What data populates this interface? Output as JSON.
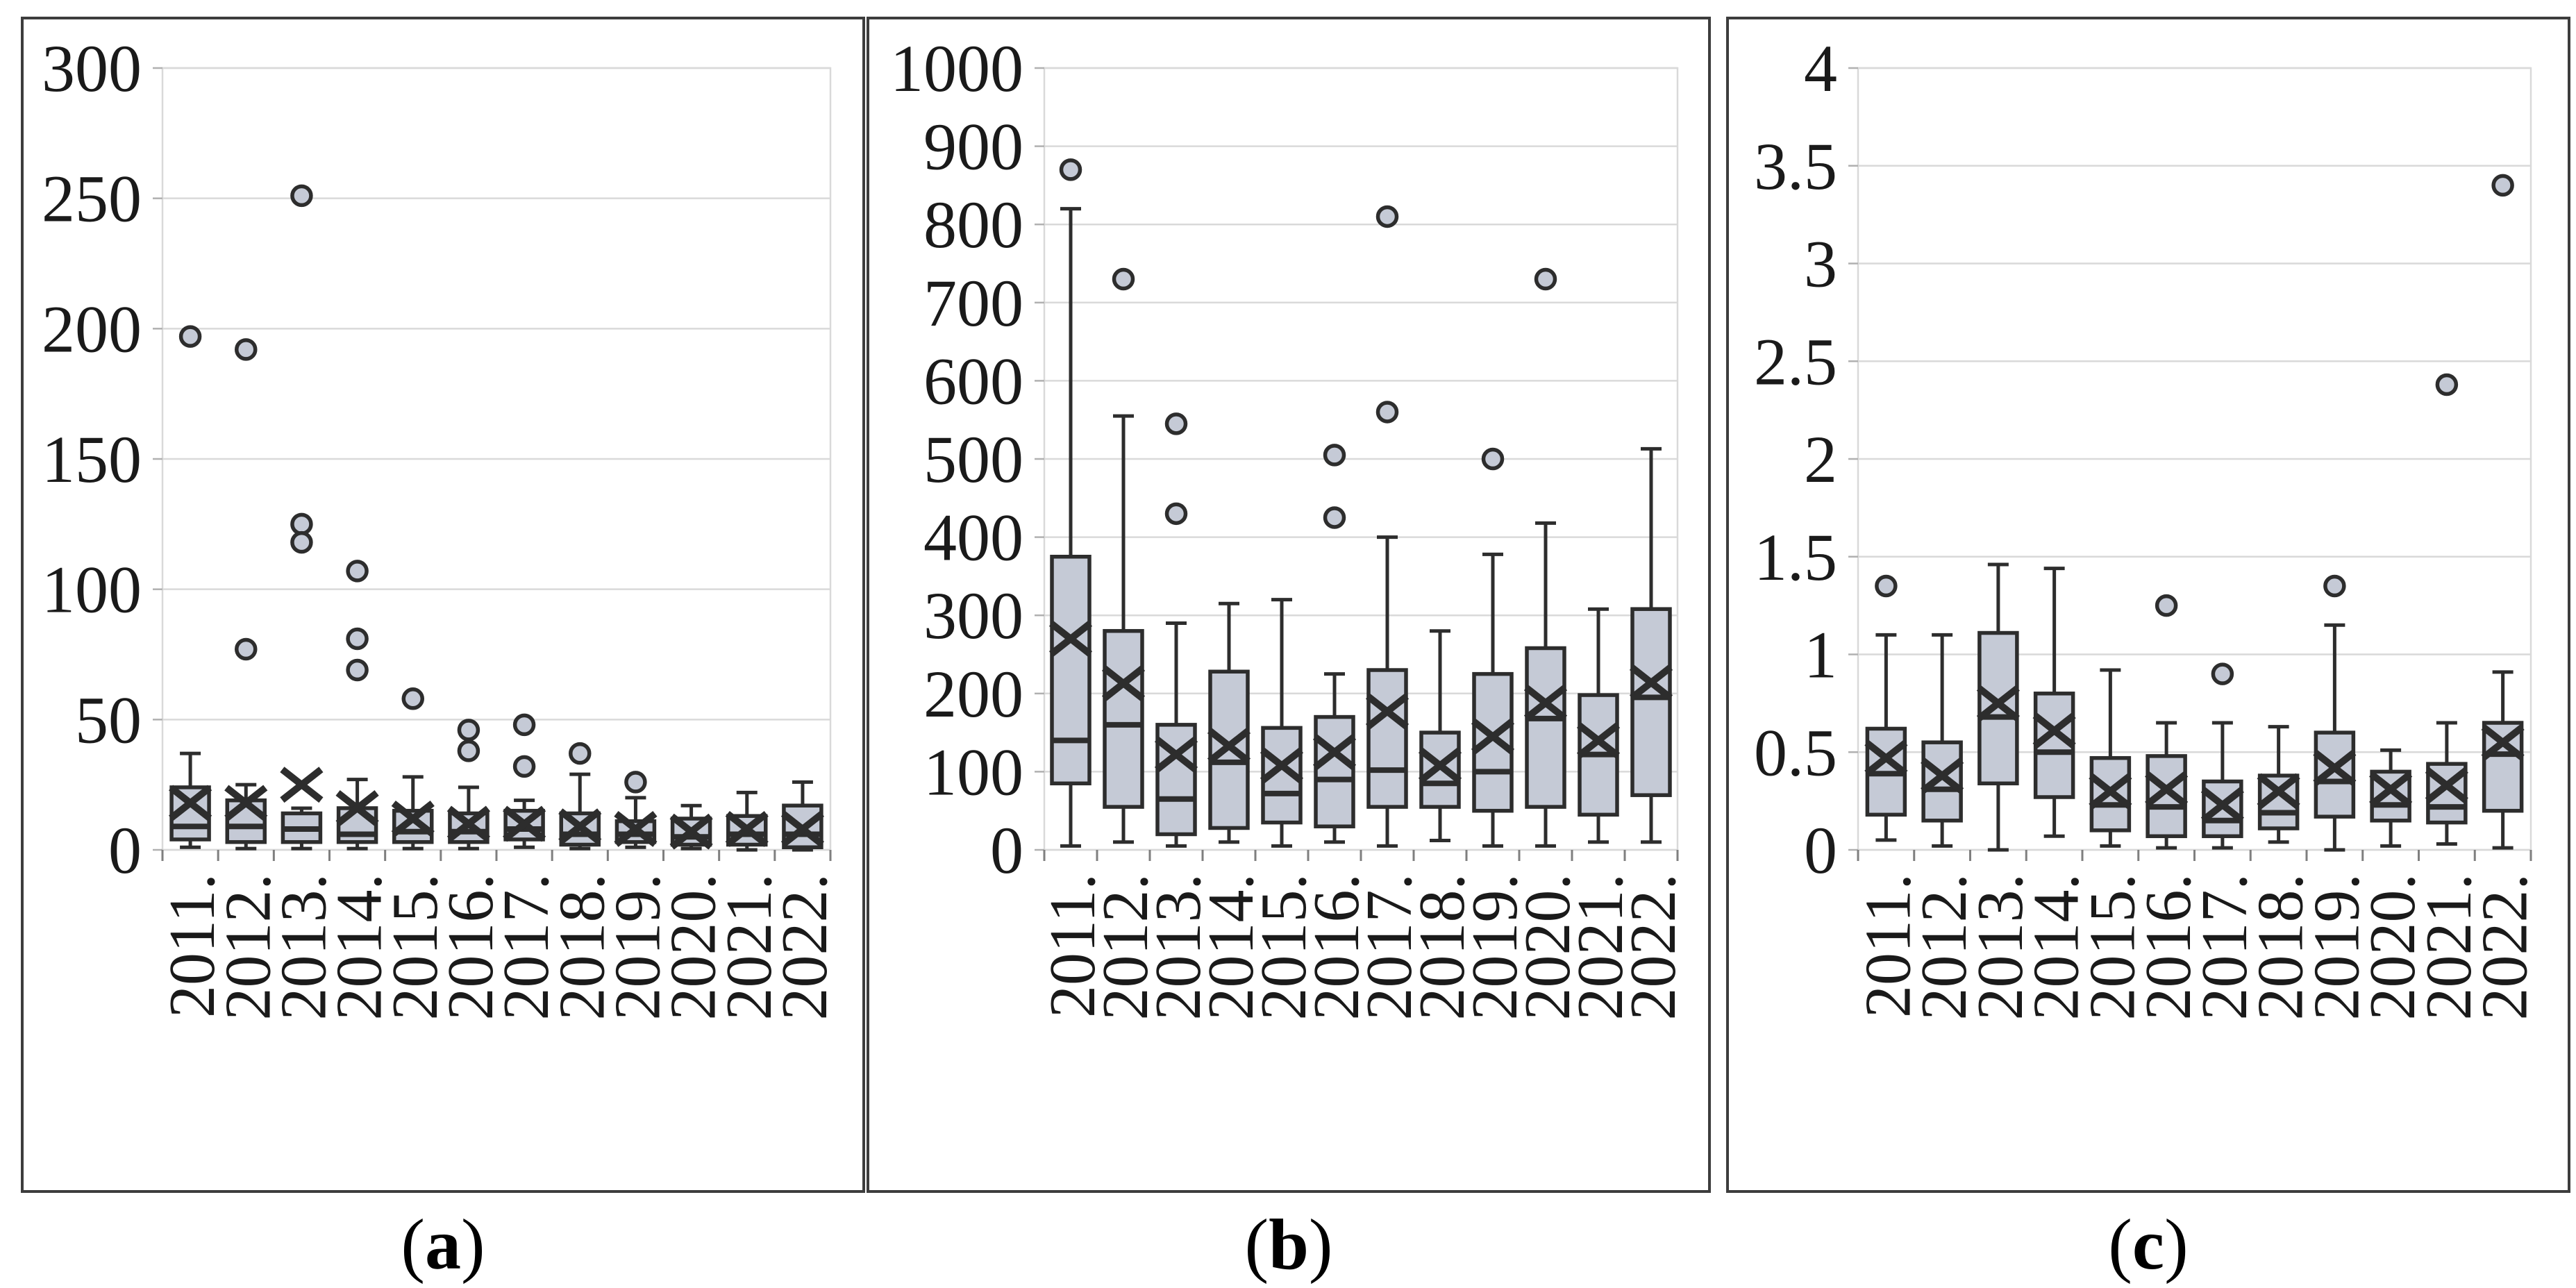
{
  "figure": {
    "background": "#ffffff",
    "box_fill": "#c5cad6",
    "box_stroke": "#2d2d2d",
    "gridline_color": "#d9d9d9",
    "panel_border_color": "#3d3d3d",
    "tick_label_color": "#1a1a1a"
  },
  "chart_data": [
    {
      "type": "boxplot",
      "panel": "a",
      "caption_open": "(",
      "caption_letter": "a",
      "caption_close": ")",
      "title": "",
      "xlabel": "",
      "ylabel": "",
      "ylim": [
        0,
        300
      ],
      "yticks": [
        0,
        50,
        100,
        150,
        200,
        250,
        300
      ],
      "ytick_labels": [
        "0",
        "50",
        "100",
        "150",
        "200",
        "250",
        "300"
      ],
      "grid": true,
      "categories": [
        "2011.",
        "2012.",
        "2013.",
        "2014.",
        "2015.",
        "2016.",
        "2017.",
        "2018.",
        "2019.",
        "2020.",
        "2021.",
        "2022."
      ],
      "series": [
        {
          "category": "2011.",
          "low": 1,
          "q1": 4,
          "median": 9,
          "q3": 24,
          "high": 37,
          "mean": 18,
          "outliers": [
            197
          ]
        },
        {
          "category": "2012.",
          "low": 0.5,
          "q1": 3,
          "median": 9,
          "q3": 19,
          "high": 25,
          "mean": 18,
          "outliers": [
            192,
            77
          ]
        },
        {
          "category": "2013.",
          "low": 0.5,
          "q1": 3,
          "median": 8,
          "q3": 14,
          "high": 16,
          "mean": 25,
          "outliers": [
            251,
            125,
            118
          ]
        },
        {
          "category": "2014.",
          "low": 0.5,
          "q1": 3,
          "median": 6,
          "q3": 16,
          "high": 27,
          "mean": 16,
          "outliers": [
            107,
            81,
            69
          ]
        },
        {
          "category": "2015.",
          "low": 0.5,
          "q1": 3,
          "median": 7,
          "q3": 15,
          "high": 28,
          "mean": 12,
          "outliers": [
            58
          ]
        },
        {
          "category": "2016.",
          "low": 0.5,
          "q1": 3,
          "median": 7,
          "q3": 14,
          "high": 24,
          "mean": 10,
          "outliers": [
            46,
            38
          ]
        },
        {
          "category": "2017.",
          "low": 1,
          "q1": 4,
          "median": 8,
          "q3": 15,
          "high": 19,
          "mean": 10,
          "outliers": [
            48,
            32
          ]
        },
        {
          "category": "2018.",
          "low": 0.5,
          "q1": 2,
          "median": 6,
          "q3": 14,
          "high": 29,
          "mean": 9,
          "outliers": [
            37
          ]
        },
        {
          "category": "2019.",
          "low": 1,
          "q1": 3,
          "median": 6,
          "q3": 11,
          "high": 20,
          "mean": 8,
          "outliers": [
            26
          ]
        },
        {
          "category": "2020.",
          "low": 0.5,
          "q1": 2,
          "median": 5,
          "q3": 12,
          "high": 17,
          "mean": 7,
          "outliers": []
        },
        {
          "category": "2021.",
          "low": 0,
          "q1": 2,
          "median": 6,
          "q3": 13,
          "high": 22,
          "mean": 8,
          "outliers": []
        },
        {
          "category": "2022.",
          "low": 0,
          "q1": 1,
          "median": 6,
          "q3": 17,
          "high": 26,
          "mean": 8,
          "outliers": []
        }
      ]
    },
    {
      "type": "boxplot",
      "panel": "b",
      "caption_open": "(",
      "caption_letter": "b",
      "caption_close": ")",
      "title": "",
      "xlabel": "",
      "ylabel": "",
      "ylim": [
        0,
        1000
      ],
      "yticks": [
        0,
        100,
        200,
        300,
        400,
        500,
        600,
        700,
        800,
        900,
        1000
      ],
      "ytick_labels": [
        "0",
        "100",
        "200",
        "300",
        "400",
        "500",
        "600",
        "700",
        "800",
        "900",
        "1000"
      ],
      "grid": true,
      "categories": [
        "2011.",
        "2012.",
        "2013.",
        "2014.",
        "2015.",
        "2016.",
        "2017.",
        "2018.",
        "2019.",
        "2020.",
        "2021.",
        "2022."
      ],
      "series": [
        {
          "category": "2011.",
          "low": 5,
          "q1": 85,
          "median": 140,
          "q3": 375,
          "high": 820,
          "mean": 270,
          "outliers": [
            870
          ]
        },
        {
          "category": "2012.",
          "low": 10,
          "q1": 55,
          "median": 160,
          "q3": 280,
          "high": 555,
          "mean": 213,
          "outliers": [
            730
          ]
        },
        {
          "category": "2013.",
          "low": 5,
          "q1": 20,
          "median": 65,
          "q3": 160,
          "high": 290,
          "mean": 122,
          "outliers": [
            545,
            430
          ]
        },
        {
          "category": "2014.",
          "low": 10,
          "q1": 28,
          "median": 112,
          "q3": 228,
          "high": 315,
          "mean": 133,
          "outliers": []
        },
        {
          "category": "2015.",
          "low": 5,
          "q1": 35,
          "median": 72,
          "q3": 156,
          "high": 320,
          "mean": 108,
          "outliers": []
        },
        {
          "category": "2016.",
          "low": 10,
          "q1": 30,
          "median": 90,
          "q3": 170,
          "high": 225,
          "mean": 125,
          "outliers": [
            505,
            425
          ]
        },
        {
          "category": "2017.",
          "low": 5,
          "q1": 55,
          "median": 102,
          "q3": 230,
          "high": 400,
          "mean": 177,
          "outliers": [
            810,
            560
          ]
        },
        {
          "category": "2018.",
          "low": 12,
          "q1": 55,
          "median": 85,
          "q3": 150,
          "high": 280,
          "mean": 108,
          "outliers": []
        },
        {
          "category": "2019.",
          "low": 5,
          "q1": 50,
          "median": 100,
          "q3": 225,
          "high": 378,
          "mean": 145,
          "outliers": [
            500
          ]
        },
        {
          "category": "2020.",
          "low": 5,
          "q1": 55,
          "median": 168,
          "q3": 258,
          "high": 418,
          "mean": 188,
          "outliers": [
            730
          ]
        },
        {
          "category": "2021.",
          "low": 10,
          "q1": 45,
          "median": 122,
          "q3": 198,
          "high": 308,
          "mean": 140,
          "outliers": []
        },
        {
          "category": "2022.",
          "low": 10,
          "q1": 70,
          "median": 195,
          "q3": 308,
          "high": 513,
          "mean": 214,
          "outliers": []
        }
      ]
    },
    {
      "type": "boxplot",
      "panel": "c",
      "caption_open": "(",
      "caption_letter": "c",
      "caption_close": ")",
      "title": "",
      "xlabel": "",
      "ylabel": "",
      "ylim": [
        0,
        4
      ],
      "yticks": [
        0,
        0.5,
        1,
        1.5,
        2,
        2.5,
        3,
        3.5,
        4
      ],
      "ytick_labels": [
        "0",
        "0.5",
        "1",
        "1.5",
        "2",
        "2.5",
        "3",
        "3.5",
        "4"
      ],
      "grid": true,
      "categories": [
        "2011.",
        "2012.",
        "2013.",
        "2014.",
        "2015.",
        "2016.",
        "2017.",
        "2018.",
        "2019.",
        "2020.",
        "2021.",
        "2022."
      ],
      "series": [
        {
          "category": "2011.",
          "low": 0.05,
          "q1": 0.18,
          "median": 0.39,
          "q3": 0.62,
          "high": 1.1,
          "mean": 0.47,
          "outliers": [
            1.35
          ]
        },
        {
          "category": "2012.",
          "low": 0.02,
          "q1": 0.15,
          "median": 0.31,
          "q3": 0.55,
          "high": 1.1,
          "mean": 0.38,
          "outliers": []
        },
        {
          "category": "2013.",
          "low": 0.0,
          "q1": 0.34,
          "median": 0.68,
          "q3": 1.11,
          "high": 1.46,
          "mean": 0.75,
          "outliers": []
        },
        {
          "category": "2014.",
          "low": 0.07,
          "q1": 0.27,
          "median": 0.5,
          "q3": 0.8,
          "high": 1.44,
          "mean": 0.61,
          "outliers": []
        },
        {
          "category": "2015.",
          "low": 0.02,
          "q1": 0.1,
          "median": 0.23,
          "q3": 0.47,
          "high": 0.92,
          "mean": 0.3,
          "outliers": []
        },
        {
          "category": "2016.",
          "low": 0.01,
          "q1": 0.07,
          "median": 0.22,
          "q3": 0.48,
          "high": 0.65,
          "mean": 0.31,
          "outliers": [
            1.25
          ]
        },
        {
          "category": "2017.",
          "low": 0.01,
          "q1": 0.07,
          "median": 0.15,
          "q3": 0.35,
          "high": 0.65,
          "mean": 0.23,
          "outliers": [
            0.9
          ]
        },
        {
          "category": "2018.",
          "low": 0.04,
          "q1": 0.11,
          "median": 0.19,
          "q3": 0.38,
          "high": 0.63,
          "mean": 0.3,
          "outliers": []
        },
        {
          "category": "2019.",
          "low": 0.0,
          "q1": 0.17,
          "median": 0.35,
          "q3": 0.6,
          "high": 1.15,
          "mean": 0.42,
          "outliers": [
            1.35
          ]
        },
        {
          "category": "2020.",
          "low": 0.02,
          "q1": 0.15,
          "median": 0.23,
          "q3": 0.4,
          "high": 0.51,
          "mean": 0.31,
          "outliers": []
        },
        {
          "category": "2021.",
          "low": 0.03,
          "q1": 0.14,
          "median": 0.22,
          "q3": 0.44,
          "high": 0.65,
          "mean": 0.33,
          "outliers": [
            2.38
          ]
        },
        {
          "category": "2022.",
          "low": 0.01,
          "q1": 0.2,
          "median": 0.49,
          "q3": 0.65,
          "high": 0.91,
          "mean": 0.55,
          "outliers": [
            3.4
          ]
        }
      ]
    }
  ]
}
